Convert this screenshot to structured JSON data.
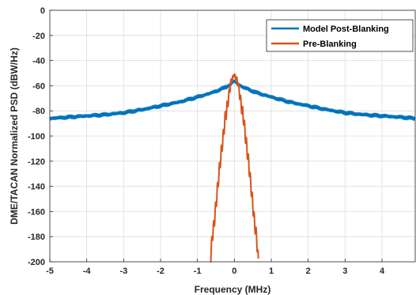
{
  "chart_data": {
    "type": "line",
    "title": "",
    "xlabel": "Frequency (MHz)",
    "ylabel": "DME/TACAN Normalized PSD (dBW/Hz)",
    "xlim": [
      -5,
      4.9
    ],
    "ylim": [
      -200,
      0
    ],
    "xticks": [
      -5,
      -4,
      -3,
      -2,
      -1,
      0,
      1,
      2,
      3,
      4
    ],
    "yticks": [
      0,
      -20,
      -40,
      -60,
      -80,
      -100,
      -120,
      -140,
      -160,
      -180,
      -200
    ],
    "grid": true,
    "legend_position": "top-right",
    "series": [
      {
        "name": "Model Post-Blanking",
        "color": "#0072BD",
        "x": [
          -5,
          -4.5,
          -4,
          -3.5,
          -3,
          -2.5,
          -2,
          -1.5,
          -1,
          -0.6,
          -0.3,
          -0.1,
          0,
          0.1,
          0.3,
          0.6,
          1,
          1.5,
          2,
          2.5,
          3,
          3.5,
          4,
          4.5,
          4.9
        ],
        "y": [
          -86,
          -85,
          -84,
          -83,
          -81.5,
          -79,
          -76,
          -73,
          -69,
          -65.5,
          -62,
          -59,
          -56,
          -59,
          -62,
          -65.5,
          -69,
          -73,
          -76,
          -79,
          -81.5,
          -83,
          -84,
          -85,
          -86
        ]
      },
      {
        "name": "Pre-Blanking",
        "color": "#D95319",
        "x": [
          -0.65,
          -0.6,
          -0.55,
          -0.5,
          -0.45,
          -0.4,
          -0.35,
          -0.3,
          -0.25,
          -0.2,
          -0.15,
          -0.1,
          -0.05,
          0,
          0.05,
          0.1,
          0.15,
          0.2,
          0.25,
          0.3,
          0.35,
          0.4,
          0.45,
          0.5,
          0.55,
          0.6,
          0.65
        ],
        "y": [
          -200,
          -180,
          -170,
          -155,
          -140,
          -125,
          -112,
          -100,
          -86,
          -78,
          -68,
          -58,
          -54,
          -51,
          -54,
          -58,
          -68,
          -78,
          -86,
          -100,
          -112,
          -125,
          -140,
          -155,
          -170,
          -180,
          -200
        ]
      }
    ]
  }
}
